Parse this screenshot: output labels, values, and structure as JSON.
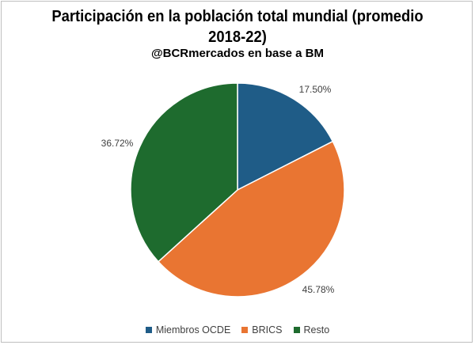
{
  "chart_data": {
    "type": "pie",
    "title": "Participación en la población total mundial (promedio 2018-22)",
    "subtitle": "@BCRmercados en base a BM",
    "slices": [
      {
        "name": "Miembros OCDE",
        "value": 17.5,
        "label": "17.50%",
        "color": "#1f5c87"
      },
      {
        "name": "BRICS",
        "value": 45.78,
        "label": "45.78%",
        "color": "#e97532"
      },
      {
        "name": "Resto",
        "value": 36.72,
        "label": "36.72%",
        "color": "#1e6b2e"
      }
    ],
    "legend_position": "bottom"
  }
}
